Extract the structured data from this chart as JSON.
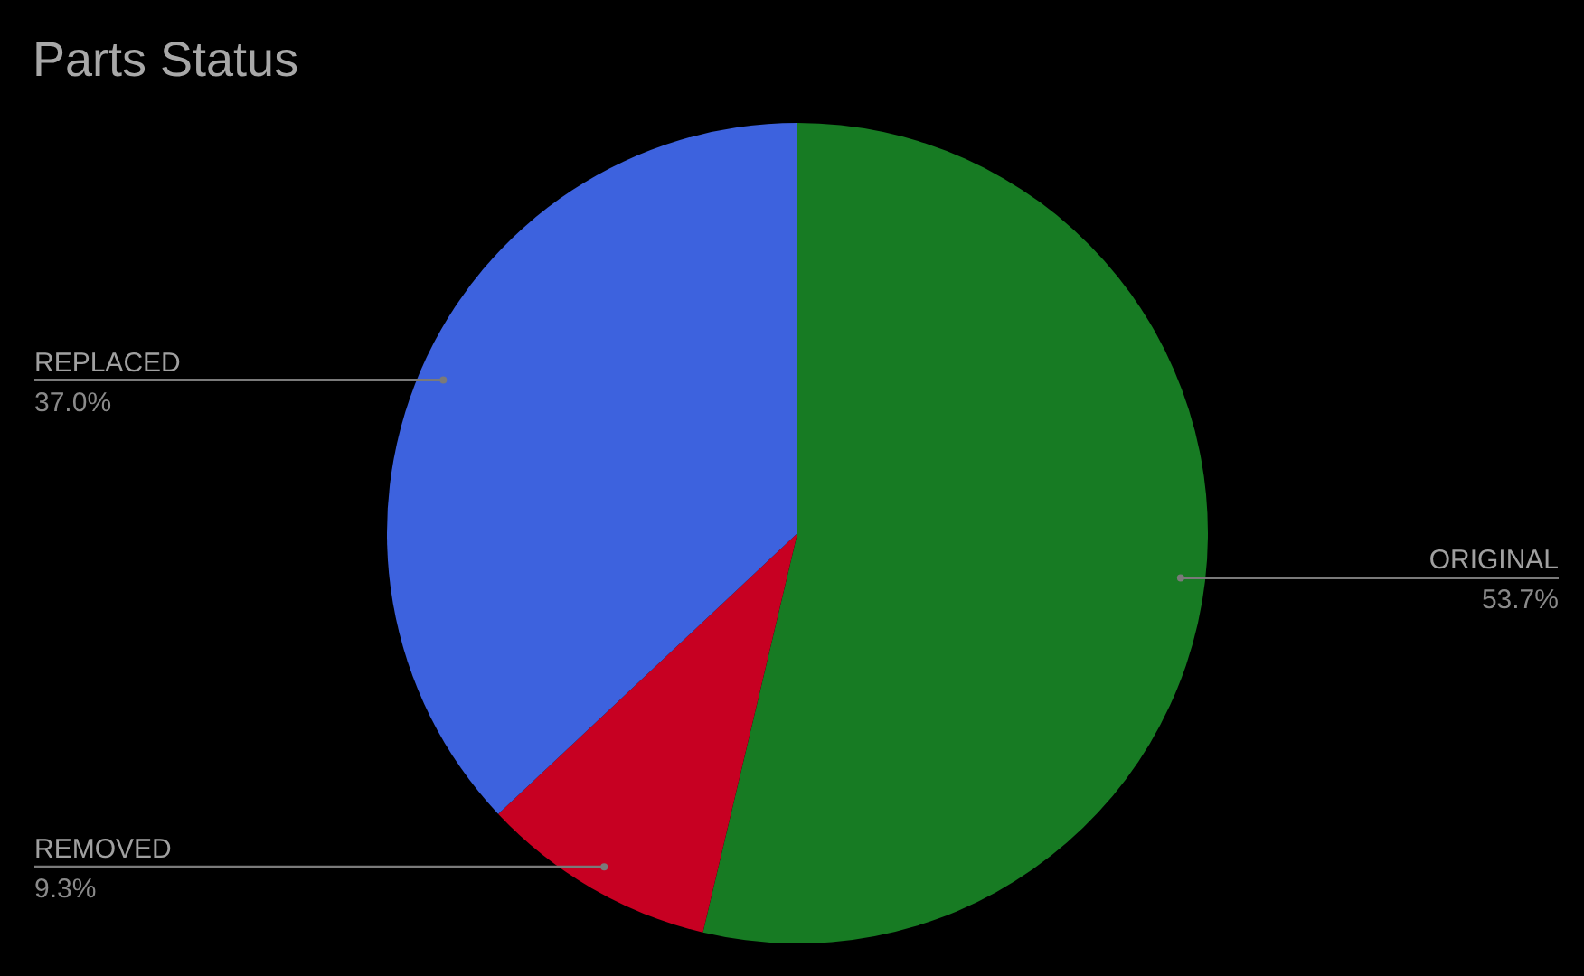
{
  "chart_data": {
    "type": "pie",
    "title": "Parts Status",
    "categories": [
      "ORIGINAL",
      "REMOVED",
      "REPLACED"
    ],
    "values": [
      53.7,
      9.3,
      37.0
    ],
    "colors": [
      "#177b23",
      "#c70022",
      "#3d62de"
    ],
    "value_labels": [
      "53.7%",
      "9.3%",
      "37.0%"
    ],
    "legend": false
  }
}
